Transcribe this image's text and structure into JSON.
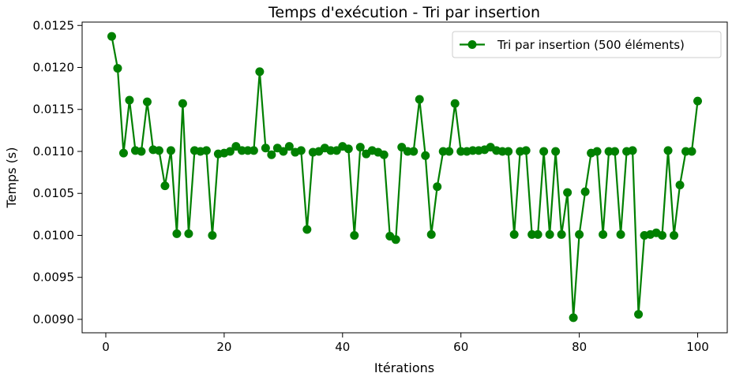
{
  "chart_data": {
    "type": "line",
    "title": "Temps d'exécution - Tri par insertion",
    "xlabel": "Itérations",
    "ylabel": "Temps (s)",
    "xlim": [
      -4,
      105
    ],
    "ylim": [
      0.00884,
      0.01254
    ],
    "xticks": [
      0,
      20,
      40,
      60,
      80,
      100
    ],
    "yticks": [
      0.009,
      0.0095,
      0.01,
      0.0105,
      0.011,
      0.0115,
      0.012,
      0.0125
    ],
    "ytick_labels": [
      "0.0090",
      "0.0095",
      "0.0100",
      "0.0105",
      "0.0110",
      "0.0115",
      "0.0120",
      "0.0125"
    ],
    "grid": false,
    "legend_position": "top-right",
    "colors": {
      "series": "#008000",
      "axis": "#000000"
    },
    "series": [
      {
        "name": "Tri par insertion (500 éléments)",
        "marker": "circle",
        "x": [
          1,
          2,
          3,
          4,
          5,
          6,
          7,
          8,
          9,
          10,
          11,
          12,
          13,
          14,
          15,
          16,
          17,
          18,
          19,
          20,
          21,
          22,
          23,
          24,
          25,
          26,
          27,
          28,
          29,
          30,
          31,
          32,
          33,
          34,
          35,
          36,
          37,
          38,
          39,
          40,
          41,
          42,
          43,
          44,
          45,
          46,
          47,
          48,
          49,
          50,
          51,
          52,
          53,
          54,
          55,
          56,
          57,
          58,
          59,
          60,
          61,
          62,
          63,
          64,
          65,
          66,
          67,
          68,
          69,
          70,
          71,
          72,
          73,
          74,
          75,
          76,
          77,
          78,
          79,
          80,
          81,
          82,
          83,
          84,
          85,
          86,
          87,
          88,
          89,
          90,
          91,
          92,
          93,
          94,
          95,
          96,
          97,
          98,
          99,
          100
        ],
        "values": [
          0.01237,
          0.01199,
          0.01098,
          0.01161,
          0.01101,
          0.011,
          0.01159,
          0.01102,
          0.01101,
          0.01059,
          0.01101,
          0.01002,
          0.01157,
          0.01002,
          0.01101,
          0.011,
          0.01101,
          0.01,
          0.01097,
          0.01098,
          0.011,
          0.01106,
          0.01101,
          0.01101,
          0.01101,
          0.01195,
          0.01104,
          0.01096,
          0.01104,
          0.011,
          0.01106,
          0.01099,
          0.01101,
          0.01007,
          0.01099,
          0.011,
          0.01104,
          0.01101,
          0.01101,
          0.01106,
          0.01103,
          0.01,
          0.01105,
          0.01097,
          0.01101,
          0.01099,
          0.01096,
          0.00999,
          0.00995,
          0.01105,
          0.011,
          0.011,
          0.01162,
          0.01095,
          0.01001,
          0.01058,
          0.011,
          0.011,
          0.01157,
          0.011,
          0.011,
          0.01101,
          0.01101,
          0.01102,
          0.01105,
          0.01101,
          0.011,
          0.011,
          0.01001,
          0.011,
          0.01101,
          0.01001,
          0.01001,
          0.011,
          0.01001,
          0.011,
          0.01001,
          0.01051,
          0.00902,
          0.01001,
          0.01052,
          0.01098,
          0.011,
          0.01001,
          0.011,
          0.011,
          0.01001,
          0.011,
          0.01101,
          0.00906,
          0.01,
          0.01001,
          0.01003,
          0.01,
          0.01101,
          0.01,
          0.0106,
          0.011,
          0.011,
          0.0116
        ]
      }
    ]
  }
}
